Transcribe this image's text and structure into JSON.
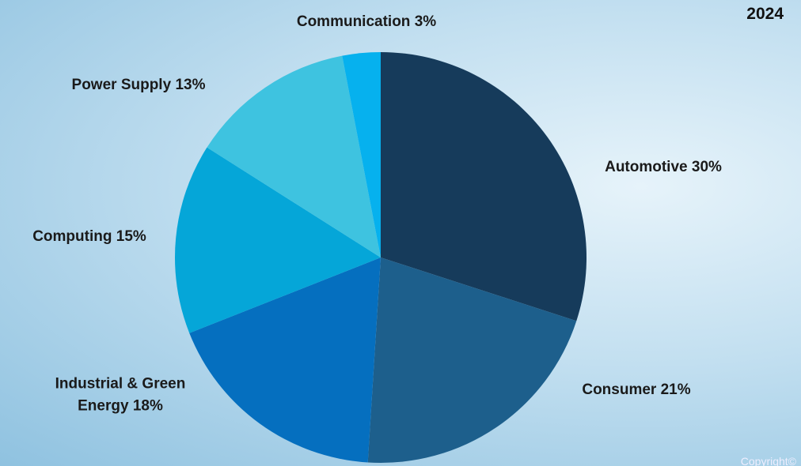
{
  "chart_data": {
    "type": "pie",
    "title": "2024",
    "categories": [
      "Automotive",
      "Consumer",
      "Industrial & Green Energy",
      "Computing",
      "Power Supply",
      "Communication"
    ],
    "values": [
      30,
      21,
      18,
      15,
      13,
      3
    ],
    "value_labels": [
      "30%",
      "21%",
      "18%",
      "15%",
      "13%",
      "3%"
    ],
    "colors": [
      "#163b5b",
      "#1d5f8c",
      "#056fbf",
      "#05a6d8",
      "#3ec3e0",
      "#06b1ee"
    ],
    "footnote": "Copyright©"
  }
}
